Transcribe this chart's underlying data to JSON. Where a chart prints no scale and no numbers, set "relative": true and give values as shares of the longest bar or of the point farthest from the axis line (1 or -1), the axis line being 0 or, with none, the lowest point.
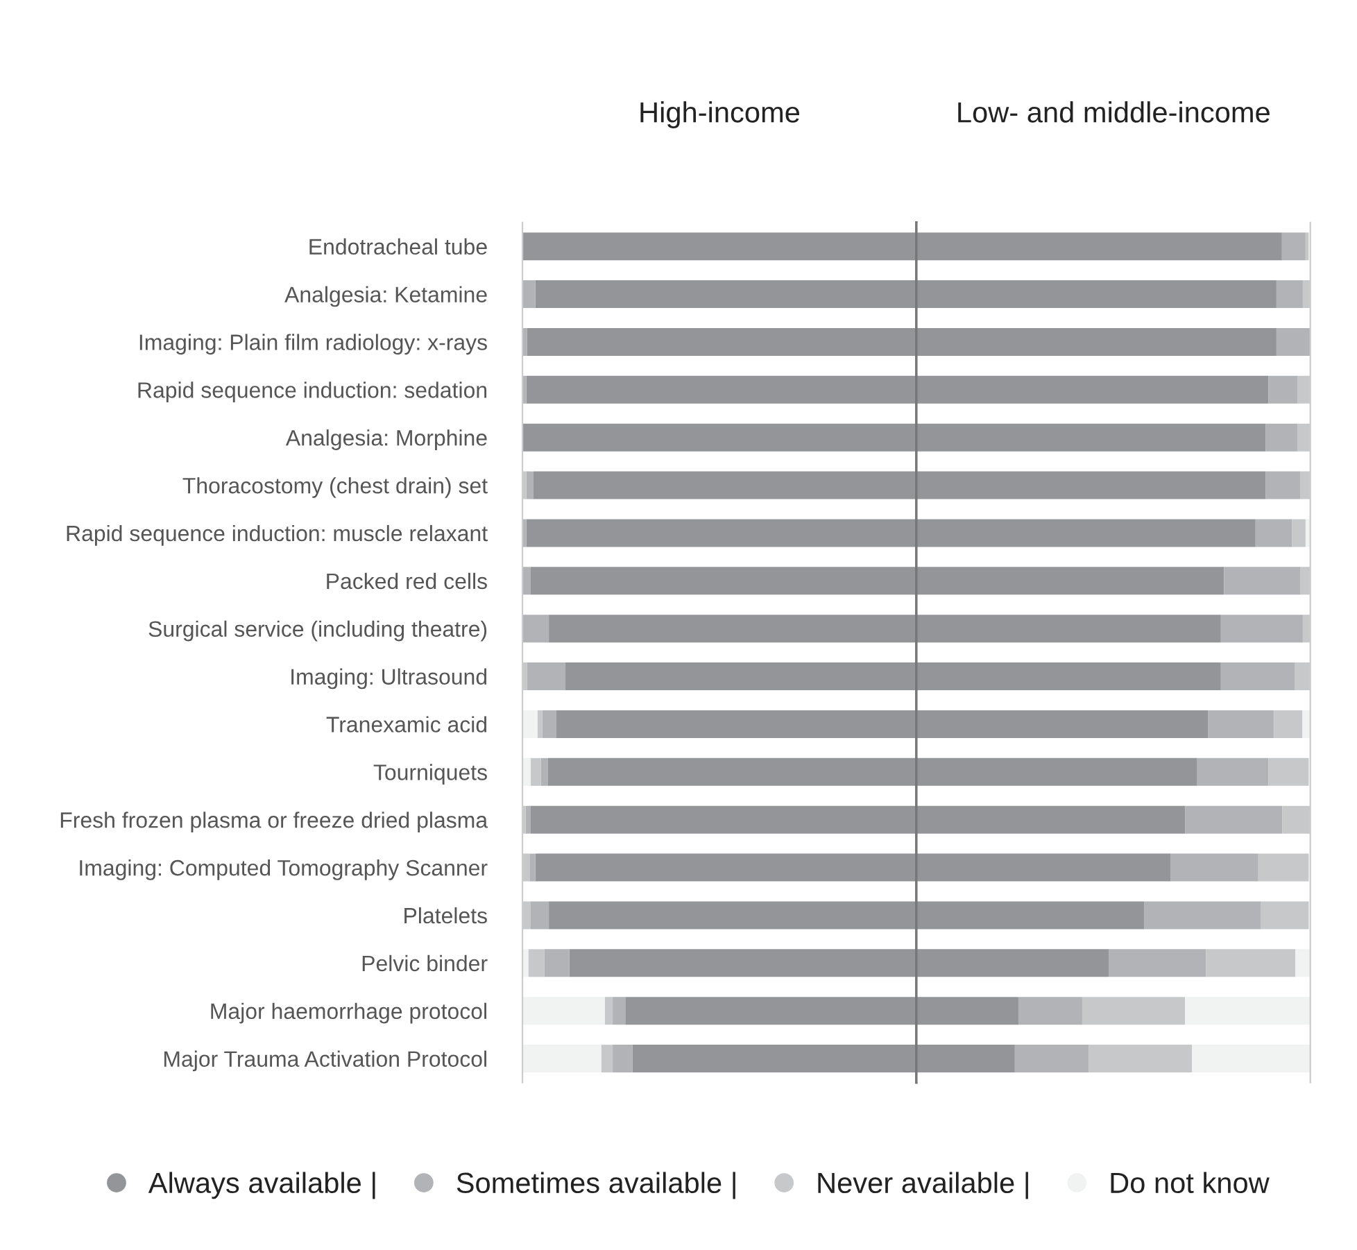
{
  "chart_data": [
    {
      "type": "bar",
      "orientation": "horizontal",
      "stacked": true,
      "relative": true,
      "title": "High-income",
      "tick_labels": "y",
      "legend": "bottom",
      "categories": [
        "Endotracheal tube",
        "Analgesia: Ketamine",
        "Imaging: Plain film radiology: x-rays",
        "Rapid sequence induction: sedation",
        "Analgesia: Morphine",
        "Thoracostomy (chest drain) set",
        "Rapid sequence induction: muscle relaxant",
        "Packed red cells",
        "Surgical service (including theatre)",
        "Imaging: Ultrasound",
        "Tranexamic acid",
        "Tourniquets",
        "Fresh frozen plasma or freeze dried plasma",
        "Imaging: Computed Tomography Scanner",
        "Platelets",
        "Pelvic binder",
        "Major haemorrhage protocol",
        "Major Trauma Activation Protocol"
      ],
      "series": [
        {
          "name": "Always available |",
          "color": "#939598",
          "values": [
            -1.0,
            -0.967,
            -0.988,
            -0.99,
            -1.0,
            -0.972,
            -0.99,
            -0.979,
            -0.933,
            -0.892,
            -0.915,
            -0.935,
            -0.979,
            -0.967,
            -0.933,
            -0.881,
            -0.739,
            -0.721
          ]
        },
        {
          "name": "Sometimes available |",
          "color": "#b1b3b6",
          "values": [
            0,
            -0.033,
            -0.012,
            -0.01,
            0,
            -0.018,
            -0.01,
            -0.021,
            -0.067,
            -0.096,
            -0.035,
            -0.018,
            -0.013,
            -0.015,
            -0.046,
            -0.063,
            -0.032,
            -0.05
          ]
        },
        {
          "name": "Never available |",
          "color": "#c7c8ca",
          "values": [
            0,
            0,
            0,
            0,
            0,
            -0.01,
            0,
            0,
            0,
            -0.012,
            -0.012,
            -0.026,
            -0.008,
            -0.018,
            -0.021,
            -0.041,
            -0.02,
            -0.029
          ]
        },
        {
          "name": "Do not know",
          "color": "#f1f2f2",
          "values": [
            0,
            0,
            0,
            0,
            0,
            0,
            0,
            0,
            0,
            0,
            -0.038,
            -0.021,
            0,
            0,
            0,
            -0.015,
            -0.209,
            -0.2
          ]
        }
      ]
    },
    {
      "type": "bar",
      "orientation": "horizontal",
      "stacked": true,
      "relative": true,
      "title": "Low- and middle-income",
      "tick_labels": false,
      "categories": [
        null,
        null,
        null,
        null,
        null,
        null,
        null,
        null,
        null,
        null,
        null,
        null,
        null,
        null,
        null,
        null,
        null,
        null
      ],
      "series": [
        {
          "color": "#939598",
          "values": [
            0.928,
            0.914,
            0.914,
            0.894,
            0.887,
            0.887,
            0.861,
            0.781,
            0.773,
            0.773,
            0.741,
            0.713,
            0.682,
            0.646,
            0.579,
            0.488,
            0.259,
            0.25
          ]
        },
        {
          "color": "#b1b3b6",
          "values": [
            0.06,
            0.067,
            0.086,
            0.073,
            0.08,
            0.087,
            0.093,
            0.193,
            0.208,
            0.187,
            0.166,
            0.181,
            0.247,
            0.222,
            0.296,
            0.247,
            0.162,
            0.188
          ]
        },
        {
          "color": "#c7c8ca",
          "values": [
            0.008,
            0.019,
            0,
            0.033,
            0.033,
            0.026,
            0.034,
            0.026,
            0.019,
            0.04,
            0.073,
            0.102,
            0.071,
            0.128,
            0.121,
            0.227,
            0.261,
            0.262
          ]
        },
        {
          "color": "#f1f2f2",
          "values": [
            null,
            0,
            0,
            0,
            0,
            0,
            0.012,
            0,
            0,
            0,
            0.02,
            null,
            0,
            null,
            null,
            0.038,
            0.318,
            0.3
          ]
        }
      ]
    }
  ]
}
